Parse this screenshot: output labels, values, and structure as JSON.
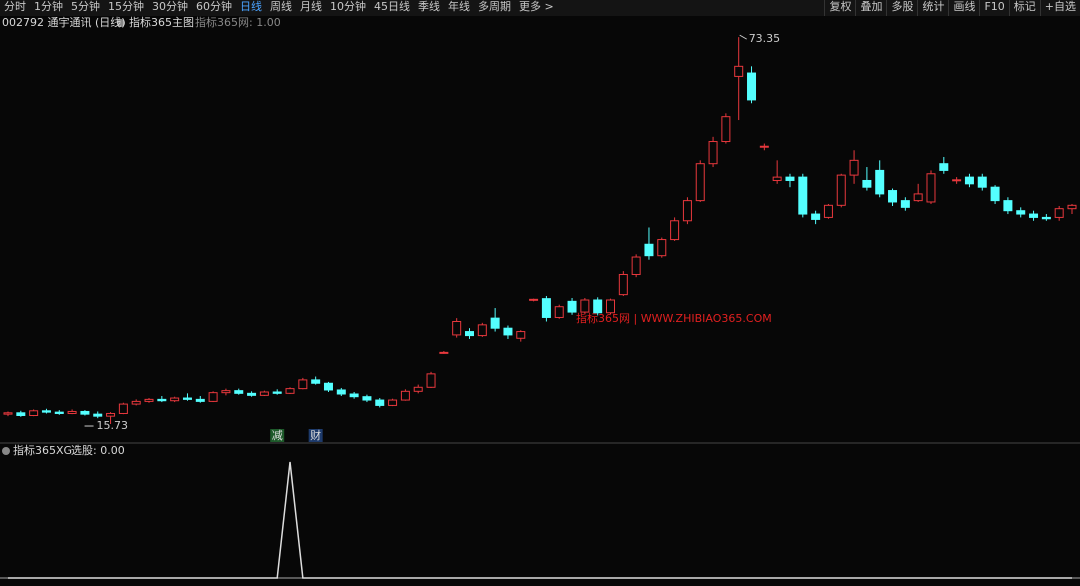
{
  "toolbar": {
    "left": [
      "分时",
      "1分钟",
      "5分钟",
      "15分钟",
      "30分钟",
      "60分钟",
      "日线",
      "周线",
      "月线",
      "10分钟",
      "45日线",
      "季线",
      "年线",
      "多周期",
      "更多 >"
    ],
    "active": "日线",
    "right": [
      "复权",
      "叠加",
      "多股",
      "统计",
      "画线",
      "F10",
      "标记",
      "+自选"
    ]
  },
  "header": {
    "stock": "002792 通宇通讯 (日线)",
    "indicator": "指标365主图",
    "param": "指标365网: 1.00"
  },
  "watermark": "指标365网 | WWW.ZHIBIAO365.COM",
  "markers": [
    {
      "label": "减",
      "index": 21
    },
    {
      "label": "财",
      "index": 24
    }
  ],
  "chart_data": {
    "type": "candlestick",
    "ylim": [
      13.35,
      75.9
    ],
    "up_color": "#e8383d",
    "down_color": "#54ffff",
    "high_label": 73.35,
    "low_label": 15.73,
    "candles": [
      [
        17.2,
        17.6,
        16.9,
        17.4
      ],
      [
        17.4,
        17.7,
        16.8,
        17.0
      ],
      [
        17.0,
        17.9,
        16.9,
        17.7
      ],
      [
        17.7,
        18.0,
        17.3,
        17.5
      ],
      [
        17.5,
        17.8,
        17.1,
        17.3
      ],
      [
        17.3,
        17.9,
        17.2,
        17.6
      ],
      [
        17.6,
        17.8,
        17.0,
        17.2
      ],
      [
        17.2,
        17.6,
        16.6,
        16.9
      ],
      [
        16.9,
        17.5,
        15.73,
        17.3
      ],
      [
        17.3,
        18.9,
        17.2,
        18.7
      ],
      [
        18.7,
        19.4,
        18.5,
        19.1
      ],
      [
        19.1,
        19.6,
        18.9,
        19.4
      ],
      [
        19.4,
        19.9,
        19.0,
        19.2
      ],
      [
        19.2,
        19.8,
        19.0,
        19.6
      ],
      [
        19.6,
        20.3,
        19.2,
        19.4
      ],
      [
        19.4,
        19.9,
        18.9,
        19.1
      ],
      [
        19.1,
        20.6,
        19.0,
        20.4
      ],
      [
        20.4,
        21.0,
        20.0,
        20.7
      ],
      [
        20.7,
        21.0,
        20.1,
        20.3
      ],
      [
        20.3,
        20.6,
        19.8,
        20.0
      ],
      [
        20.0,
        20.7,
        19.9,
        20.5
      ],
      [
        20.5,
        20.9,
        20.1,
        20.3
      ],
      [
        20.3,
        21.2,
        20.2,
        21.0
      ],
      [
        21.0,
        22.6,
        20.9,
        22.3
      ],
      [
        22.3,
        22.8,
        21.6,
        21.8
      ],
      [
        21.8,
        22.0,
        20.5,
        20.8
      ],
      [
        20.8,
        21.1,
        19.9,
        20.2
      ],
      [
        20.2,
        20.5,
        19.5,
        19.8
      ],
      [
        19.8,
        20.1,
        19.0,
        19.3
      ],
      [
        19.3,
        19.6,
        18.2,
        18.5
      ],
      [
        18.5,
        19.5,
        18.4,
        19.3
      ],
      [
        19.3,
        20.9,
        19.2,
        20.6
      ],
      [
        20.6,
        21.6,
        20.3,
        21.2
      ],
      [
        21.2,
        23.5,
        21.1,
        23.2
      ],
      [
        26.3,
        26.6,
        26.2,
        26.4
      ],
      [
        29.0,
        31.5,
        28.6,
        31.0
      ],
      [
        29.5,
        30.0,
        28.4,
        28.9
      ],
      [
        28.9,
        30.8,
        28.7,
        30.5
      ],
      [
        31.5,
        33.0,
        29.5,
        30.0
      ],
      [
        30.0,
        30.4,
        28.4,
        29.0
      ],
      [
        28.5,
        29.7,
        28.0,
        29.5
      ],
      [
        34.2,
        34.4,
        34.0,
        34.3
      ],
      [
        34.4,
        34.8,
        31.0,
        31.6
      ],
      [
        31.6,
        33.5,
        31.4,
        33.2
      ],
      [
        34.0,
        34.5,
        32.0,
        32.4
      ],
      [
        32.4,
        34.5,
        32.2,
        34.2
      ],
      [
        34.2,
        34.6,
        31.9,
        32.3
      ],
      [
        32.3,
        34.4,
        32.1,
        34.2
      ],
      [
        35.0,
        38.5,
        34.8,
        38.0
      ],
      [
        38.0,
        41.0,
        37.6,
        40.6
      ],
      [
        42.5,
        45.0,
        40.2,
        40.8
      ],
      [
        40.8,
        43.5,
        40.5,
        43.2
      ],
      [
        43.2,
        46.5,
        43.0,
        46.0
      ],
      [
        46.0,
        49.5,
        45.5,
        49.0
      ],
      [
        49.0,
        55.0,
        48.8,
        54.5
      ],
      [
        54.5,
        58.5,
        54.0,
        57.8
      ],
      [
        57.8,
        62.0,
        57.5,
        61.5
      ],
      [
        67.5,
        73.35,
        61.0,
        69.0
      ],
      [
        68.0,
        69.0,
        63.5,
        64.0
      ],
      [
        57.0,
        57.5,
        56.5,
        57.1
      ],
      [
        52.0,
        55.0,
        51.5,
        52.5
      ],
      [
        52.5,
        53.0,
        51.0,
        52.0
      ],
      [
        52.5,
        53.0,
        46.5,
        47.0
      ],
      [
        47.0,
        47.5,
        45.5,
        46.2
      ],
      [
        46.5,
        48.5,
        46.3,
        48.3
      ],
      [
        48.3,
        53.0,
        48.0,
        52.8
      ],
      [
        52.8,
        56.5,
        51.5,
        55.0
      ],
      [
        52.0,
        54.0,
        50.5,
        51.0
      ],
      [
        53.5,
        55.0,
        49.5,
        50.0
      ],
      [
        50.5,
        50.8,
        48.2,
        48.8
      ],
      [
        49.0,
        49.5,
        47.5,
        48.0
      ],
      [
        49.0,
        51.5,
        48.8,
        50.0
      ],
      [
        48.8,
        53.5,
        48.5,
        53.0
      ],
      [
        54.5,
        55.5,
        53.0,
        53.5
      ],
      [
        52.0,
        52.5,
        51.5,
        52.1
      ],
      [
        52.5,
        53.0,
        51.0,
        51.5
      ],
      [
        52.5,
        53.0,
        50.5,
        51.0
      ],
      [
        51.0,
        51.3,
        48.5,
        49.0
      ],
      [
        49.0,
        49.5,
        47.0,
        47.5
      ],
      [
        47.5,
        48.0,
        46.5,
        47.0
      ],
      [
        47.0,
        47.5,
        46.0,
        46.5
      ],
      [
        46.5,
        47.0,
        46.0,
        46.3
      ],
      [
        46.5,
        48.2,
        46.0,
        47.8
      ],
      [
        47.8,
        48.5,
        47.0,
        48.3
      ]
    ]
  },
  "indicator": {
    "title": "指标365XG",
    "label": "选股: 0.00",
    "ylim": [
      0,
      1
    ],
    "color": "#dddddd",
    "values": [
      0,
      0,
      0,
      0,
      0,
      0,
      0,
      0,
      0,
      0,
      0,
      0,
      0,
      0,
      0,
      0,
      0,
      0,
      0,
      0,
      0,
      0,
      1,
      0,
      0,
      0,
      0,
      0,
      0,
      0,
      0,
      0,
      0,
      0,
      0,
      0,
      0,
      0,
      0,
      0,
      0,
      0,
      0,
      0,
      0,
      0,
      0,
      0,
      0,
      0,
      0,
      0,
      0,
      0,
      0,
      0,
      0,
      0,
      0,
      0,
      0,
      0,
      0,
      0,
      0,
      0,
      0,
      0,
      0,
      0,
      0,
      0,
      0,
      0,
      0,
      0,
      0,
      0,
      0,
      0,
      0,
      0,
      0,
      0
    ]
  }
}
